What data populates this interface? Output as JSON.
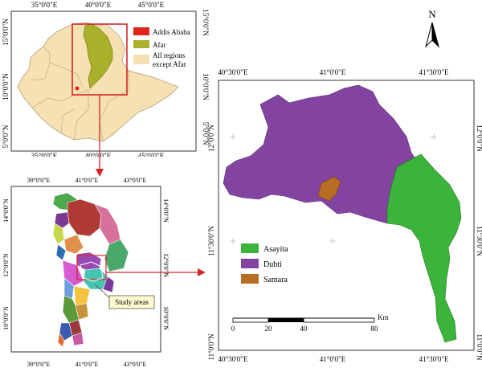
{
  "top_map": {
    "lon_ticks": [
      "35°0'0\"E",
      "40°0'0\"E",
      "45°0'0\"E"
    ],
    "lat_ticks_left": [
      "15°0'0\"N",
      "10°0'0\"N",
      "5°0'0\"N"
    ],
    "lat_ticks_right": [
      "15°0'0\"N",
      "10°0'0\"N",
      "5°0'0\"N"
    ],
    "legend": [
      {
        "label": "Addis Ababa",
        "color": "#e0241b"
      },
      {
        "label": "Afar",
        "color": "#a9b02a"
      },
      {
        "label": "All regions",
        "color": "#f6e1b3"
      },
      {
        "label": "except Afar",
        "color": ""
      }
    ],
    "region_colors": {
      "ethiopia": "#f6e1b3",
      "afar": "#a9b02a",
      "highlight": "#d7262a"
    }
  },
  "afar_map": {
    "lon_ticks_top": [
      "39°0'0\"E",
      "41°0'0\"E",
      "43°0'0\"E"
    ],
    "lon_ticks_bottom": [
      "39°0'0\"E",
      "41°0'0\"E",
      "43°0'0\"E"
    ],
    "lat_ticks_left": [
      "14°0'0\"N",
      "12°0'0\"N",
      "10°0'0\"N"
    ],
    "lat_ticks_right": [
      "14°0'0\"N",
      "12°0'0\"N",
      "10°0'0\"N"
    ],
    "callout_label": "Study areas"
  },
  "study_map": {
    "lon_ticks_top": [
      "40°30'0\"E",
      "41°0'0\"E",
      "41°30'0\"E"
    ],
    "lon_ticks_bottom": [
      "40°30'0\"E",
      "41°0'0\"E",
      "41°30'0\"E"
    ],
    "lat_ticks_left": [
      "12°0'0\"N",
      "11°30'0\"N",
      "11°0'0\"N"
    ],
    "lat_ticks_right": [
      "12°0'0\"N",
      "11°30'0\"N",
      "11°0'0\"N"
    ],
    "legend": [
      {
        "label": "Asayita",
        "color": "#3cb43c"
      },
      {
        "label": "Dubti",
        "color": "#8343a0"
      },
      {
        "label": "Samara",
        "color": "#b86d25"
      }
    ],
    "scale_bar": {
      "ticks": [
        "0",
        "20",
        "40",
        "80"
      ],
      "unit": "Km"
    },
    "north_label": "N"
  }
}
